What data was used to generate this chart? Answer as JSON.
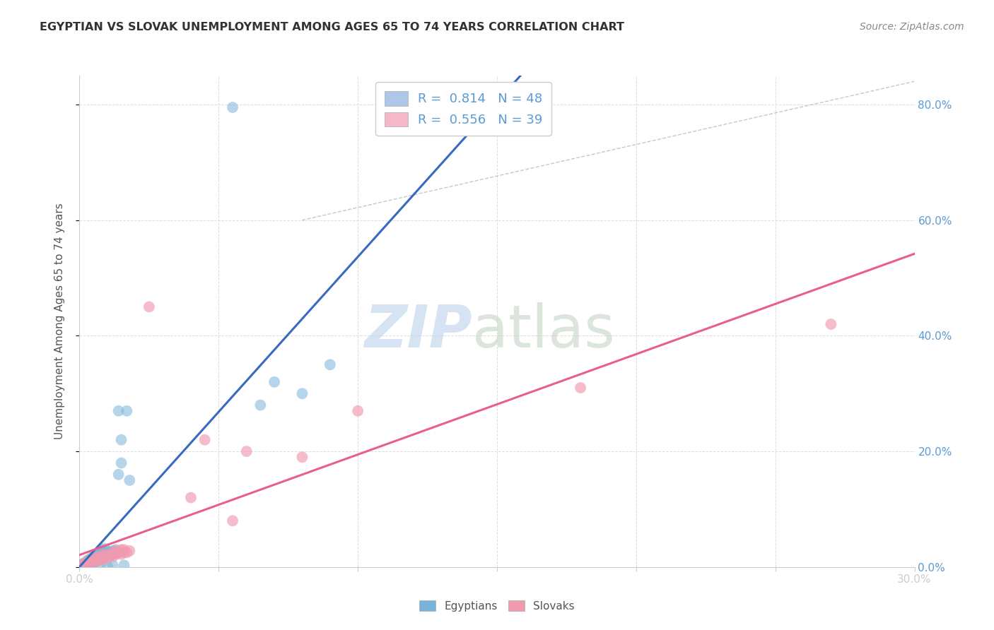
{
  "title": "EGYPTIAN VS SLOVAK UNEMPLOYMENT AMONG AGES 65 TO 74 YEARS CORRELATION CHART",
  "source": "Source: ZipAtlas.com",
  "ylabel": "Unemployment Among Ages 65 to 74 years",
  "legend_entries": [
    {
      "label": "R =  0.814   N = 48",
      "color": "#aec6e8"
    },
    {
      "label": "R =  0.556   N = 39",
      "color": "#f4b8c8"
    }
  ],
  "legend_labels_bottom": [
    "Egyptians",
    "Slovaks"
  ],
  "egyptian_color": "#7ab3d9",
  "slovak_color": "#f09ab0",
  "egyptian_line_color": "#3a6abf",
  "slovak_line_color": "#e8608a",
  "ref_line_color": "#c8c8c8",
  "egyptian_scatter": [
    [
      0.001,
      0.005
    ],
    [
      0.002,
      0.005
    ],
    [
      0.002,
      0.008
    ],
    [
      0.003,
      0.008
    ],
    [
      0.003,
      0.01
    ],
    [
      0.003,
      0.012
    ],
    [
      0.004,
      0.01
    ],
    [
      0.004,
      0.012
    ],
    [
      0.004,
      0.015
    ],
    [
      0.005,
      0.005
    ],
    [
      0.005,
      0.008
    ],
    [
      0.005,
      0.012
    ],
    [
      0.005,
      0.015
    ],
    [
      0.005,
      0.018
    ],
    [
      0.006,
      0.01
    ],
    [
      0.006,
      0.015
    ],
    [
      0.006,
      0.02
    ],
    [
      0.007,
      0.015
    ],
    [
      0.007,
      0.02
    ],
    [
      0.007,
      0.025
    ],
    [
      0.008,
      0.008
    ],
    [
      0.008,
      0.015
    ],
    [
      0.008,
      0.022
    ],
    [
      0.008,
      0.03
    ],
    [
      0.009,
      0.018
    ],
    [
      0.009,
      0.025
    ],
    [
      0.009,
      0.032
    ],
    [
      0.01,
      0.002
    ],
    [
      0.01,
      0.02
    ],
    [
      0.01,
      0.028
    ],
    [
      0.011,
      0.025
    ],
    [
      0.012,
      0.003
    ],
    [
      0.012,
      0.022
    ],
    [
      0.012,
      0.028
    ],
    [
      0.013,
      0.025
    ],
    [
      0.013,
      0.03
    ],
    [
      0.014,
      0.27
    ],
    [
      0.014,
      0.16
    ],
    [
      0.015,
      0.18
    ],
    [
      0.015,
      0.22
    ],
    [
      0.016,
      0.003
    ],
    [
      0.017,
      0.27
    ],
    [
      0.018,
      0.15
    ],
    [
      0.055,
      0.795
    ],
    [
      0.065,
      0.28
    ],
    [
      0.07,
      0.32
    ],
    [
      0.08,
      0.3
    ],
    [
      0.09,
      0.35
    ]
  ],
  "slovak_scatter": [
    [
      0.001,
      0.005
    ],
    [
      0.002,
      0.006
    ],
    [
      0.003,
      0.008
    ],
    [
      0.003,
      0.01
    ],
    [
      0.004,
      0.008
    ],
    [
      0.004,
      0.01
    ],
    [
      0.005,
      0.01
    ],
    [
      0.005,
      0.012
    ],
    [
      0.006,
      0.01
    ],
    [
      0.006,
      0.015
    ],
    [
      0.007,
      0.012
    ],
    [
      0.007,
      0.018
    ],
    [
      0.008,
      0.012
    ],
    [
      0.008,
      0.015
    ],
    [
      0.009,
      0.018
    ],
    [
      0.009,
      0.022
    ],
    [
      0.01,
      0.015
    ],
    [
      0.01,
      0.02
    ],
    [
      0.011,
      0.02
    ],
    [
      0.012,
      0.018
    ],
    [
      0.012,
      0.025
    ],
    [
      0.013,
      0.022
    ],
    [
      0.013,
      0.028
    ],
    [
      0.014,
      0.025
    ],
    [
      0.015,
      0.022
    ],
    [
      0.015,
      0.03
    ],
    [
      0.016,
      0.025
    ],
    [
      0.016,
      0.03
    ],
    [
      0.017,
      0.025
    ],
    [
      0.018,
      0.028
    ],
    [
      0.025,
      0.45
    ],
    [
      0.04,
      0.12
    ],
    [
      0.045,
      0.22
    ],
    [
      0.055,
      0.08
    ],
    [
      0.06,
      0.2
    ],
    [
      0.08,
      0.19
    ],
    [
      0.1,
      0.27
    ],
    [
      0.18,
      0.31
    ],
    [
      0.27,
      0.42
    ]
  ],
  "xlim": [
    0,
    0.3
  ],
  "ylim": [
    0,
    0.85
  ],
  "yticks": [
    0.0,
    0.2,
    0.4,
    0.6,
    0.8
  ],
  "ytick_labels_right": [
    "0.0%",
    "20.0%",
    "40.0%",
    "60.0%",
    "80.0%"
  ],
  "xtick_positions": [
    0.0,
    0.05,
    0.1,
    0.15,
    0.2,
    0.25,
    0.3
  ],
  "xtick_labels": [
    "0.0%",
    "",
    "",
    "",
    "",
    "",
    "30.0%"
  ],
  "background_color": "#ffffff",
  "grid_color": "#dddddd",
  "title_color": "#333333",
  "source_color": "#888888",
  "tick_label_color": "#5b9bd5"
}
